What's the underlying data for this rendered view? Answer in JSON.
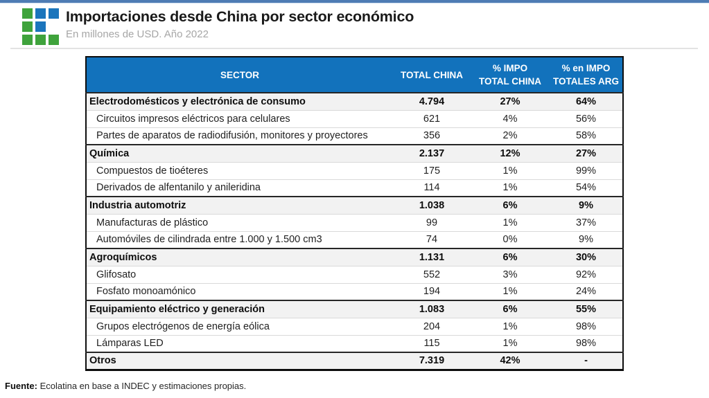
{
  "header": {
    "title": "Importaciones desde China por sector económico",
    "subtitle": "En millones de USD. Año 2022"
  },
  "logo": {
    "name": "ecolatina-logo",
    "grid": [
      [
        "green",
        "blue",
        "blue"
      ],
      [
        "green",
        "blue",
        "empty"
      ],
      [
        "green",
        "green",
        "green"
      ]
    ]
  },
  "colors": {
    "header_blue": "#1272BC",
    "logo_green": "#3FA33C",
    "logo_blue": "#1B75BC",
    "top_bar_blue": "#4E7CB4",
    "sector_row_bg": "#F2F2F2",
    "divider_gray": "#E3E3E3",
    "subtitle_gray": "#A6A6A6"
  },
  "table": {
    "columns_display": [
      {
        "lines": [
          "SECTOR",
          ""
        ]
      },
      {
        "lines": [
          "TOTAL CHINA",
          ""
        ]
      },
      {
        "lines": [
          "% IMPO",
          "TOTAL CHINA"
        ]
      },
      {
        "lines": [
          "% en IMPO",
          "TOTALES ARG"
        ]
      }
    ]
  },
  "chart_data": {
    "type": "table",
    "title": "Importaciones desde China por sector económico",
    "subtitle": "En millones de USD. Año 2022",
    "unit": "millones de USD",
    "year": "2022",
    "columns": [
      "SECTOR",
      "TOTAL CHINA",
      "% IMPO TOTAL CHINA",
      "% en IMPO TOTALES ARG"
    ],
    "rows": [
      {
        "row_type": "sector",
        "sector": "Electrodomésticos y electrónica de consumo",
        "total_china": "4.794",
        "pct_impo_total_china": "27%",
        "pct_en_impo_totales_arg": "64%"
      },
      {
        "row_type": "item",
        "sector": "Circuitos impresos eléctricos para celulares",
        "total_china": "621",
        "pct_impo_total_china": "4%",
        "pct_en_impo_totales_arg": "56%"
      },
      {
        "row_type": "item",
        "sector": "Partes de aparatos de radiodifusión, monitores y proyectores",
        "total_china": "356",
        "pct_impo_total_china": "2%",
        "pct_en_impo_totales_arg": "58%"
      },
      {
        "row_type": "sector",
        "sector": "Química",
        "total_china": "2.137",
        "pct_impo_total_china": "12%",
        "pct_en_impo_totales_arg": "27%"
      },
      {
        "row_type": "item",
        "sector": "Compuestos de tioéteres",
        "total_china": "175",
        "pct_impo_total_china": "1%",
        "pct_en_impo_totales_arg": "99%"
      },
      {
        "row_type": "item",
        "sector": "Derivados de alfentanilo y anileridina",
        "total_china": "114",
        "pct_impo_total_china": "1%",
        "pct_en_impo_totales_arg": "54%"
      },
      {
        "row_type": "sector",
        "sector": "Industria automotriz",
        "total_china": "1.038",
        "pct_impo_total_china": "6%",
        "pct_en_impo_totales_arg": "9%"
      },
      {
        "row_type": "item",
        "sector": "Manufacturas de plástico",
        "total_china": "99",
        "pct_impo_total_china": "1%",
        "pct_en_impo_totales_arg": "37%"
      },
      {
        "row_type": "item",
        "sector": "Automóviles de cilindrada entre 1.000 y 1.500 cm3",
        "total_china": "74",
        "pct_impo_total_china": "0%",
        "pct_en_impo_totales_arg": "9%"
      },
      {
        "row_type": "sector",
        "sector": "Agroquímicos",
        "total_china": "1.131",
        "pct_impo_total_china": "6%",
        "pct_en_impo_totales_arg": "30%"
      },
      {
        "row_type": "item",
        "sector": "Glifosato",
        "total_china": "552",
        "pct_impo_total_china": "3%",
        "pct_en_impo_totales_arg": "92%"
      },
      {
        "row_type": "item",
        "sector": "Fosfato monoamónico",
        "total_china": "194",
        "pct_impo_total_china": "1%",
        "pct_en_impo_totales_arg": "24%"
      },
      {
        "row_type": "sector",
        "sector": "Equipamiento eléctrico y generación",
        "total_china": "1.083",
        "pct_impo_total_china": "6%",
        "pct_en_impo_totales_arg": "55%"
      },
      {
        "row_type": "item",
        "sector": "Grupos electrógenos de energía eólica",
        "total_china": "204",
        "pct_impo_total_china": "1%",
        "pct_en_impo_totales_arg": "98%"
      },
      {
        "row_type": "item",
        "sector": "Lámparas LED",
        "total_china": "115",
        "pct_impo_total_china": "1%",
        "pct_en_impo_totales_arg": "98%"
      },
      {
        "row_type": "sector",
        "sector": "Otros",
        "total_china": "7.319",
        "pct_impo_total_china": "42%",
        "pct_en_impo_totales_arg": "-"
      }
    ]
  },
  "footer": {
    "source_label": "Fuente:",
    "source_text": " Ecolatina en base a INDEC y estimaciones propias."
  }
}
